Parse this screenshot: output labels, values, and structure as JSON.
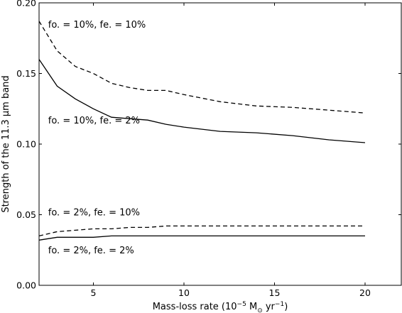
{
  "chart_data": {
    "type": "line",
    "xlabel_prefix": "Mass-loss rate (10",
    "xlabel_exp1": "−5",
    "xlabel_mid": " M",
    "xlabel_sun": "⊙",
    "xlabel_mid2": " yr",
    "xlabel_exp2": "−1",
    "xlabel_suffix": ")",
    "ylabel": "Strength of the 11.3 μm band",
    "xlim": [
      2,
      22
    ],
    "ylim": [
      0,
      0.2
    ],
    "xticks": [
      5,
      10,
      15,
      20
    ],
    "yticks": [
      0.0,
      0.05,
      0.1,
      0.15,
      0.2
    ],
    "xtick_labels": [
      "5",
      "10",
      "15",
      "20"
    ],
    "ytick_labels": [
      "0.00",
      "0.05",
      "0.10",
      "0.15",
      "0.20"
    ],
    "grid": false,
    "series": [
      {
        "name": "fo. = 10%, fe. = 10%",
        "style": "dashed",
        "x": [
          2,
          3,
          4,
          5,
          6,
          7,
          8,
          9,
          10,
          12,
          14,
          16,
          18,
          20
        ],
        "y": [
          0.187,
          0.166,
          0.155,
          0.15,
          0.143,
          0.14,
          0.138,
          0.138,
          0.135,
          0.13,
          0.127,
          0.126,
          0.124,
          0.122
        ]
      },
      {
        "name": "fo. = 10%, fe. = 2%",
        "style": "solid",
        "x": [
          2,
          3,
          4,
          5,
          6,
          7,
          8,
          9,
          10,
          12,
          14,
          16,
          18,
          20
        ],
        "y": [
          0.16,
          0.141,
          0.132,
          0.125,
          0.119,
          0.118,
          0.117,
          0.114,
          0.112,
          0.109,
          0.108,
          0.106,
          0.103,
          0.101
        ]
      },
      {
        "name": "fo. = 2%, fe. = 10%",
        "style": "dashed",
        "x": [
          2,
          3,
          4,
          5,
          6,
          7,
          8,
          9,
          10,
          12,
          14,
          16,
          18,
          20
        ],
        "y": [
          0.035,
          0.038,
          0.039,
          0.04,
          0.04,
          0.041,
          0.041,
          0.042,
          0.042,
          0.042,
          0.042,
          0.042,
          0.042,
          0.042
        ]
      },
      {
        "name": "fo. = 2%, fe. = 2%",
        "style": "solid",
        "x": [
          2,
          3,
          4,
          5,
          6,
          7,
          8,
          9,
          10,
          12,
          14,
          16,
          18,
          20
        ],
        "y": [
          0.032,
          0.034,
          0.034,
          0.034,
          0.035,
          0.035,
          0.035,
          0.035,
          0.035,
          0.035,
          0.035,
          0.035,
          0.035,
          0.035
        ]
      }
    ],
    "annotations": [
      {
        "text": "fo. = 10%, fe. = 10%",
        "x": 2.5,
        "y": 0.1825
      },
      {
        "text": "fo. = 10%, fe. = 2%",
        "x": 2.5,
        "y": 0.1145
      },
      {
        "text": "fo. = 2%, fe. = 10%",
        "x": 2.5,
        "y": 0.0495
      },
      {
        "text": "fo. = 2%, fe. = 2%",
        "x": 2.5,
        "y": 0.0225
      }
    ]
  }
}
